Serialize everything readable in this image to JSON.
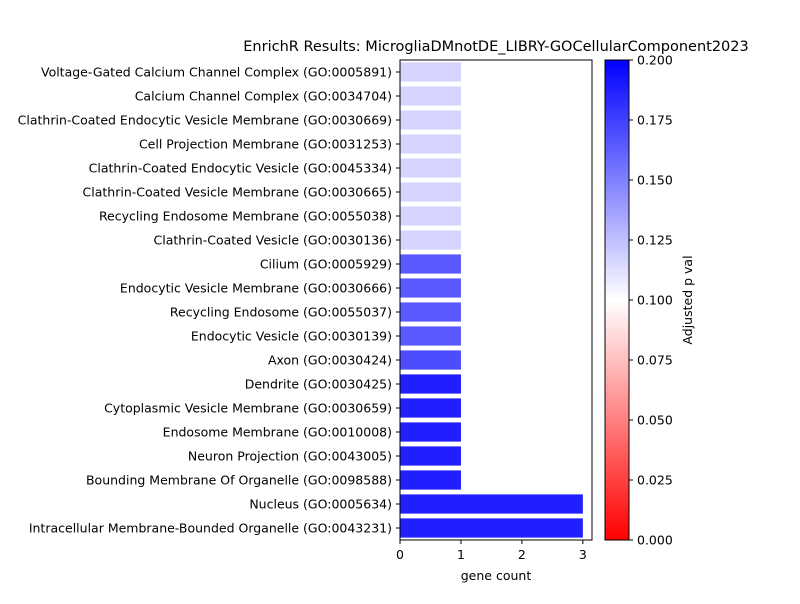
{
  "chart_data": {
    "type": "bar",
    "orientation": "horizontal",
    "title": "EnrichR Results: MicrogliaDMnotDE_LIBRY-GOCellularComponent2023",
    "xlabel": "gene count",
    "xlim": [
      0,
      3.15
    ],
    "xticks": [
      "0",
      "1",
      "2",
      "3"
    ],
    "categories": [
      "Voltage-Gated Calcium Channel Complex (GO:0005891)",
      "Calcium Channel Complex (GO:0034704)",
      "Clathrin-Coated Endocytic Vesicle Membrane (GO:0030669)",
      "Cell Projection Membrane (GO:0031253)",
      "Clathrin-Coated Endocytic Vesicle (GO:0045334)",
      "Clathrin-Coated Vesicle Membrane (GO:0030665)",
      "Recycling Endosome Membrane (GO:0055038)",
      "Clathrin-Coated Vesicle (GO:0030136)",
      "Cilium (GO:0005929)",
      "Endocytic Vesicle Membrane (GO:0030666)",
      "Recycling Endosome (GO:0055037)",
      "Endocytic Vesicle (GO:0030139)",
      "Axon (GO:0030424)",
      "Dendrite (GO:0030425)",
      "Cytoplasmic Vesicle Membrane (GO:0030659)",
      "Endosome Membrane (GO:0010008)",
      "Neuron Projection (GO:0043005)",
      "Bounding Membrane Of Organelle (GO:0098588)",
      "Nucleus (GO:0005634)",
      "Intracellular Membrane-Bounded Organelle (GO:0043231)"
    ],
    "values": [
      1,
      1,
      1,
      1,
      1,
      1,
      1,
      1,
      1,
      1,
      1,
      1,
      1,
      1,
      1,
      1,
      1,
      1,
      3,
      3
    ],
    "adjusted_p": [
      0.117,
      0.117,
      0.117,
      0.117,
      0.117,
      0.117,
      0.117,
      0.117,
      0.165,
      0.165,
      0.165,
      0.165,
      0.17,
      0.188,
      0.188,
      0.188,
      0.188,
      0.188,
      0.188,
      0.188
    ],
    "colorbar": {
      "label": "Adjusted p val",
      "range": [
        0,
        0.2
      ],
      "ticks": [
        "0.000",
        "0.025",
        "0.050",
        "0.075",
        "0.100",
        "0.125",
        "0.150",
        "0.175",
        "0.200"
      ],
      "colormap": [
        "#ff0000",
        "#ffffff",
        "#0000ff"
      ]
    },
    "grid": false,
    "legend": "none"
  }
}
